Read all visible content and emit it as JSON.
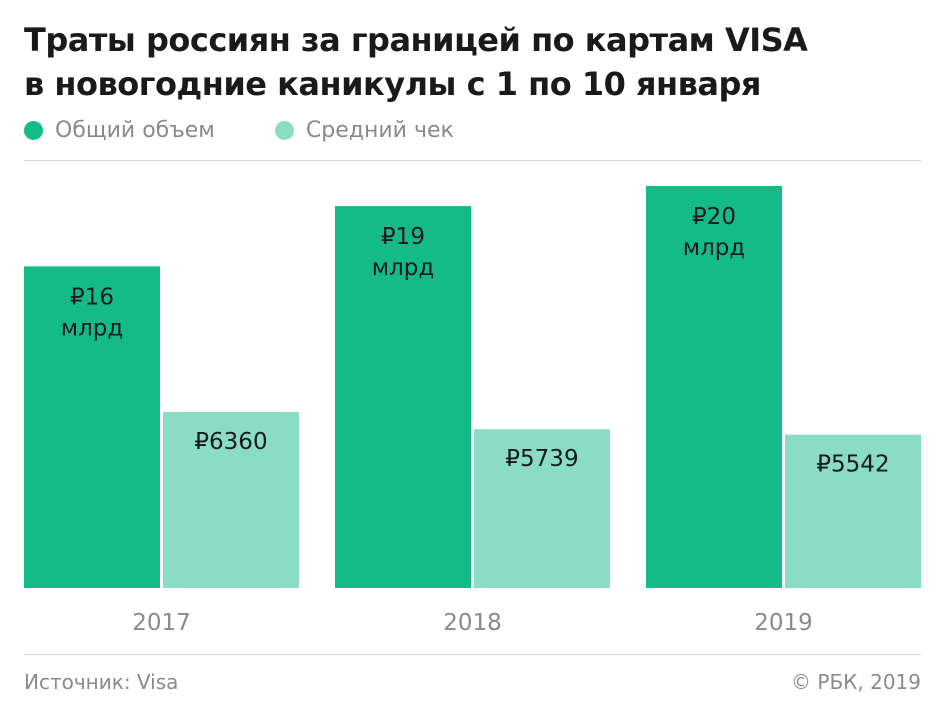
{
  "title": {
    "line1": "Траты россиян за границей по картам VISA",
    "line2": "в новогодние каникулы с 1 по 10 января"
  },
  "colors": {
    "total": "#15bb86",
    "avg": "#8adcc4",
    "rule": "#d6d6d6",
    "text_dark": "#1a1a1a",
    "text_gray": "#8a8a8a"
  },
  "chart_data": {
    "type": "bar",
    "title": "Траты россиян за границей по картам VISA в новогодние каникулы с 1 по 10 января",
    "categories": [
      "2017",
      "2018",
      "2019"
    ],
    "series": [
      {
        "name": "Общий объем",
        "values": [
          16,
          19,
          20
        ],
        "labels": [
          [
            "₽16",
            "млрд"
          ],
          [
            "₽19",
            "млрд"
          ],
          [
            "₽20",
            "млрд"
          ]
        ]
      },
      {
        "name": "Средний чек",
        "values": [
          6360,
          5739,
          5542
        ],
        "labels": [
          [
            "₽6360"
          ],
          [
            "₽5739"
          ],
          [
            "₽5542"
          ]
        ]
      }
    ],
    "grid": false,
    "legend_position": "top-left"
  },
  "footer": {
    "source": "Источник: Visa",
    "copyright": "© РБК, 2019"
  }
}
